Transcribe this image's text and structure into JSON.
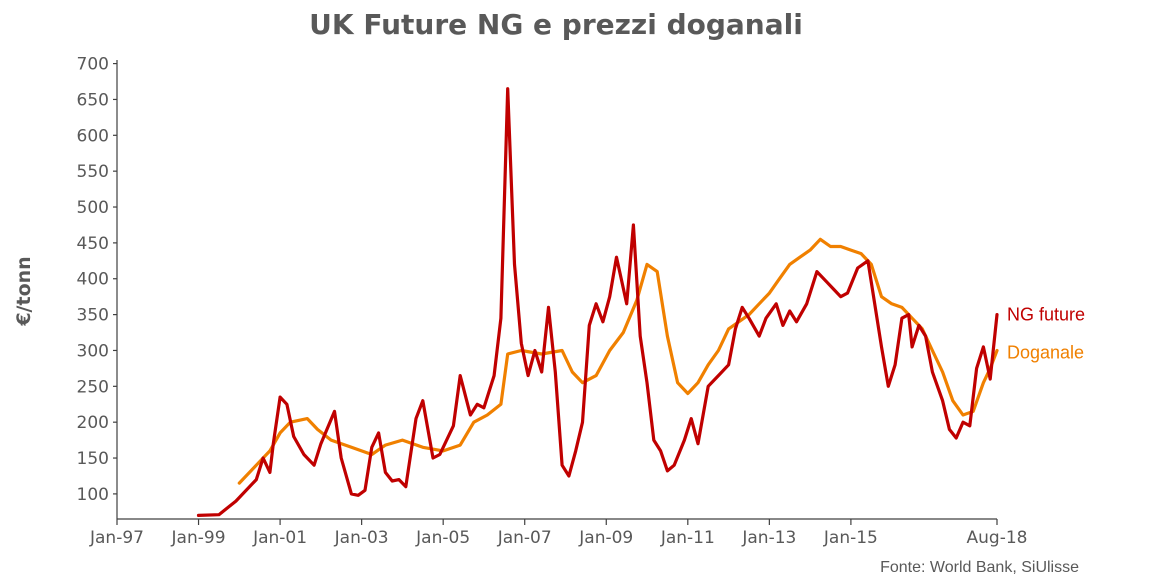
{
  "chart_data": {
    "type": "line",
    "title": "UK Future NG e prezzi doganali",
    "ylabel": "€/tonn",
    "xlabel": "",
    "source": "Fonte: World Bank, SiUlisse",
    "x_ticks": [
      "Jan-97",
      "Jan-99",
      "Jan-01",
      "Jan-03",
      "Jan-05",
      "Jan-07",
      "Jan-09",
      "Jan-11",
      "Jan-13",
      "Jan-15",
      "Aug-18"
    ],
    "y_ticks": [
      100,
      150,
      200,
      250,
      300,
      350,
      400,
      450,
      500,
      550,
      600,
      650,
      700
    ],
    "xlim": [
      "Jan-97",
      "Aug-18"
    ],
    "ylim": [
      65,
      705
    ],
    "grid": false,
    "legend": "inline labels at line ends (right)",
    "series": [
      {
        "name": "NG future",
        "color": "#c00000",
        "points": [
          [
            "Jan-99",
            70
          ],
          [
            "Jul-99",
            71
          ],
          [
            "Dec-99",
            90
          ],
          [
            "Jun-00",
            120
          ],
          [
            "Aug-00",
            150
          ],
          [
            "Oct-00",
            130
          ],
          [
            "Nov-00",
            170
          ],
          [
            "Jan-01",
            235
          ],
          [
            "Mar-01",
            225
          ],
          [
            "May-01",
            180
          ],
          [
            "Aug-01",
            155
          ],
          [
            "Nov-01",
            140
          ],
          [
            "Jan-02",
            170
          ],
          [
            "May-02",
            215
          ],
          [
            "Jul-02",
            150
          ],
          [
            "Oct-02",
            100
          ],
          [
            "Dec-02",
            98
          ],
          [
            "Feb-03",
            105
          ],
          [
            "Apr-03",
            165
          ],
          [
            "Jun-03",
            185
          ],
          [
            "Aug-03",
            130
          ],
          [
            "Oct-03",
            118
          ],
          [
            "Dec-03",
            120
          ],
          [
            "Feb-04",
            110
          ],
          [
            "May-04",
            205
          ],
          [
            "Jul-04",
            230
          ],
          [
            "Oct-04",
            150
          ],
          [
            "Dec-04",
            155
          ],
          [
            "Apr-05",
            195
          ],
          [
            "Jun-05",
            265
          ],
          [
            "Sep-05",
            210
          ],
          [
            "Nov-05",
            225
          ],
          [
            "Jan-06",
            220
          ],
          [
            "Apr-06",
            265
          ],
          [
            "Jun-06",
            345
          ],
          [
            "Aug-06",
            665
          ],
          [
            "Oct-06",
            420
          ],
          [
            "Dec-06",
            310
          ],
          [
            "Feb-07",
            265
          ],
          [
            "Apr-07",
            300
          ],
          [
            "Jun-07",
            270
          ],
          [
            "Aug-07",
            360
          ],
          [
            "Oct-07",
            270
          ],
          [
            "Dec-07",
            140
          ],
          [
            "Feb-08",
            125
          ],
          [
            "Apr-08",
            160
          ],
          [
            "Jun-08",
            200
          ],
          [
            "Aug-08",
            335
          ],
          [
            "Oct-08",
            365
          ],
          [
            "Dec-08",
            340
          ],
          [
            "Feb-09",
            375
          ],
          [
            "Apr-09",
            430
          ],
          [
            "Jul-09",
            365
          ],
          [
            "Sep-09",
            475
          ],
          [
            "Nov-09",
            320
          ],
          [
            "Jan-10",
            255
          ],
          [
            "Mar-10",
            175
          ],
          [
            "May-10",
            160
          ],
          [
            "Jul-10",
            132
          ],
          [
            "Sep-10",
            140
          ],
          [
            "Dec-10",
            175
          ],
          [
            "Feb-11",
            205
          ],
          [
            "Apr-11",
            170
          ],
          [
            "Jul-11",
            250
          ],
          [
            "Oct-11",
            265
          ],
          [
            "Jan-12",
            280
          ],
          [
            "Mar-12",
            330
          ],
          [
            "May-12",
            360
          ],
          [
            "Jul-12",
            345
          ],
          [
            "Oct-12",
            320
          ],
          [
            "Dec-12",
            345
          ],
          [
            "Mar-13",
            365
          ],
          [
            "May-13",
            335
          ],
          [
            "Jul-13",
            355
          ],
          [
            "Sep-13",
            340
          ],
          [
            "Dec-13",
            365
          ],
          [
            "Mar-14",
            410
          ],
          [
            "Jun-14",
            395
          ],
          [
            "Aug-14",
            385
          ],
          [
            "Oct-14",
            375
          ],
          [
            "Dec-14",
            380
          ],
          [
            "Mar-15",
            415
          ],
          [
            "Jun-15",
            425
          ],
          [
            "Aug-15",
            365
          ],
          [
            "Oct-15",
            305
          ],
          [
            "Dec-15",
            250
          ],
          [
            "Feb-16",
            280
          ],
          [
            "Apr-16",
            345
          ],
          [
            "Jun-16",
            350
          ],
          [
            "Jul-16",
            305
          ],
          [
            "Sep-16",
            335
          ],
          [
            "Nov-16",
            320
          ],
          [
            "Jan-17",
            270
          ],
          [
            "Apr-17",
            230
          ],
          [
            "Jun-17",
            190
          ],
          [
            "Aug-17",
            178
          ],
          [
            "Oct-17",
            200
          ],
          [
            "Dec-17",
            195
          ],
          [
            "Feb-18",
            275
          ],
          [
            "Apr-18",
            305
          ],
          [
            "Jun-18",
            260
          ],
          [
            "Aug-18",
            350
          ]
        ]
      },
      {
        "name": "Doganale",
        "color": "#f08000",
        "points": [
          [
            "Jan-00",
            115
          ],
          [
            "Jun-00",
            140
          ],
          [
            "Oct-00",
            160
          ],
          [
            "Jan-01",
            185
          ],
          [
            "Apr-01",
            200
          ],
          [
            "Sep-01",
            205
          ],
          [
            "Dec-01",
            190
          ],
          [
            "Apr-02",
            175
          ],
          [
            "Oct-02",
            165
          ],
          [
            "Apr-03",
            155
          ],
          [
            "Aug-03",
            168
          ],
          [
            "Jan-04",
            175
          ],
          [
            "Jul-04",
            165
          ],
          [
            "Jan-05",
            160
          ],
          [
            "Jun-05",
            168
          ],
          [
            "Oct-05",
            200
          ],
          [
            "Feb-06",
            210
          ],
          [
            "Jun-06",
            225
          ],
          [
            "Aug-06",
            295
          ],
          [
            "Dec-06",
            300
          ],
          [
            "Jun-07",
            295
          ],
          [
            "Dec-07",
            300
          ],
          [
            "Mar-08",
            270
          ],
          [
            "Jun-08",
            255
          ],
          [
            "Oct-08",
            265
          ],
          [
            "Feb-09",
            300
          ],
          [
            "Jun-09",
            325
          ],
          [
            "Oct-09",
            370
          ],
          [
            "Jan-10",
            420
          ],
          [
            "Apr-10",
            410
          ],
          [
            "Jul-10",
            320
          ],
          [
            "Oct-10",
            255
          ],
          [
            "Jan-11",
            240
          ],
          [
            "Apr-11",
            255
          ],
          [
            "Jul-11",
            280
          ],
          [
            "Oct-11",
            300
          ],
          [
            "Jan-12",
            330
          ],
          [
            "Apr-12",
            340
          ],
          [
            "Jul-12",
            350
          ],
          [
            "Oct-12",
            365
          ],
          [
            "Jan-13",
            380
          ],
          [
            "Apr-13",
            400
          ],
          [
            "Jul-13",
            420
          ],
          [
            "Oct-13",
            430
          ],
          [
            "Jan-14",
            440
          ],
          [
            "Apr-14",
            455
          ],
          [
            "Jul-14",
            445
          ],
          [
            "Oct-14",
            445
          ],
          [
            "Jan-15",
            440
          ],
          [
            "Apr-15",
            435
          ],
          [
            "Jul-15",
            420
          ],
          [
            "Oct-15",
            375
          ],
          [
            "Jan-16",
            365
          ],
          [
            "Apr-16",
            360
          ],
          [
            "Jul-16",
            345
          ],
          [
            "Oct-16",
            330
          ],
          [
            "Jan-17",
            300
          ],
          [
            "Apr-17",
            270
          ],
          [
            "Jul-17",
            230
          ],
          [
            "Oct-17",
            210
          ],
          [
            "Jan-18",
            215
          ],
          [
            "Apr-18",
            255
          ],
          [
            "Jun-18",
            275
          ],
          [
            "Aug-18",
            300
          ]
        ]
      }
    ]
  }
}
